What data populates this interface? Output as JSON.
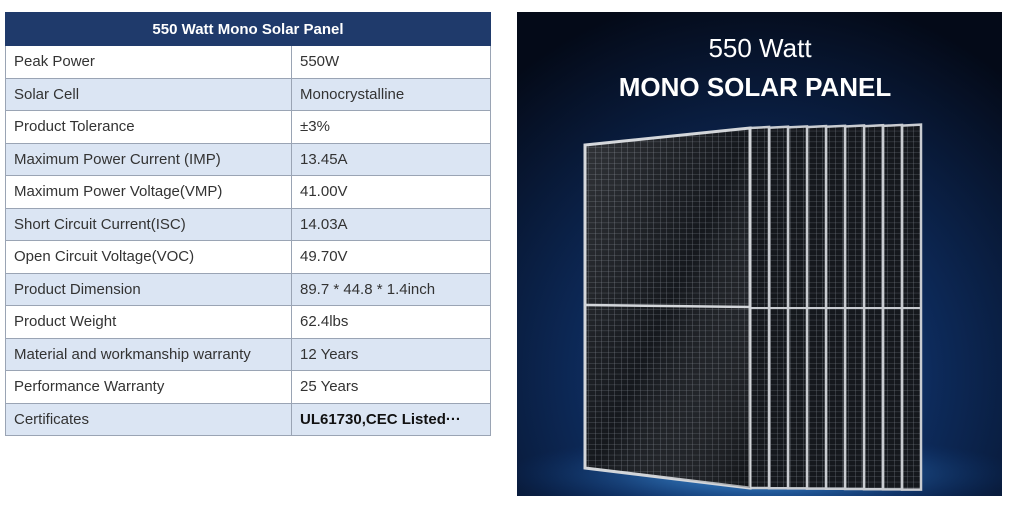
{
  "table": {
    "title": "550 Watt Mono Solar Panel",
    "rows": [
      [
        "Peak Power",
        "550W"
      ],
      [
        "Solar Cell",
        "Monocrystalline"
      ],
      [
        "Product Tolerance",
        "±3%"
      ],
      [
        "Maximum Power Current (IMP)",
        "13.45A"
      ],
      [
        "Maximum Power Voltage(VMP)",
        "41.00V"
      ],
      [
        "Short Circuit Current(ISC)",
        "14.03A"
      ],
      [
        "Open Circuit Voltage(VOC)",
        "49.70V"
      ],
      [
        "Product Dimension",
        "89.7 * 44.8 * 1.4inch"
      ],
      [
        "Product Weight",
        "62.4lbs"
      ],
      [
        "Material and workmanship warranty",
        "12 Years"
      ],
      [
        "Performance Warranty",
        "25 Years"
      ],
      [
        "Certificates",
        "UL61730,CEC Listed···"
      ]
    ]
  },
  "image": {
    "title_line1": "550 Watt",
    "title_line2": "MONO SOLAR PANEL"
  }
}
